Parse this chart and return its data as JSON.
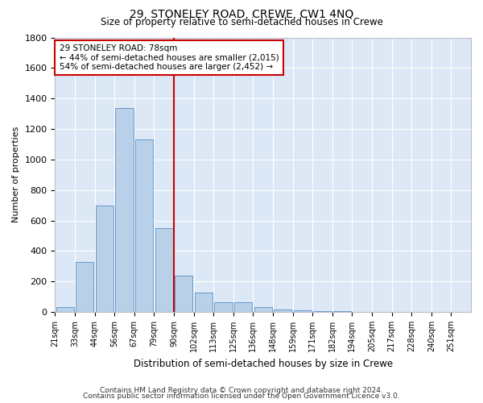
{
  "title": "29, STONELEY ROAD, CREWE, CW1 4NQ",
  "subtitle": "Size of property relative to semi-detached houses in Crewe",
  "xlabel": "Distribution of semi-detached houses by size in Crewe",
  "ylabel": "Number of properties",
  "annotation_line1": "29 STONELEY ROAD: 78sqm",
  "annotation_line2": "← 44% of semi-detached houses are smaller (2,015)",
  "annotation_line3": "54% of semi-detached houses are larger (2,452) →",
  "footer1": "Contains HM Land Registry data © Crown copyright and database right 2024.",
  "footer2": "Contains public sector information licensed under the Open Government Licence v3.0.",
  "bar_color": "#b8d0e8",
  "bar_edge_color": "#6699cc",
  "red_line_color": "#cc0000",
  "bg_color": "#dce8f5",
  "tick_labels": [
    "21sqm",
    "33sqm",
    "44sqm",
    "56sqm",
    "67sqm",
    "79sqm",
    "90sqm",
    "102sqm",
    "113sqm",
    "125sqm",
    "136sqm",
    "148sqm",
    "159sqm",
    "171sqm",
    "182sqm",
    "194sqm",
    "205sqm",
    "217sqm",
    "228sqm",
    "240sqm",
    "251sqm"
  ],
  "bar_heights": [
    30,
    330,
    700,
    1340,
    1130,
    550,
    240,
    125,
    65,
    65,
    30,
    15,
    10,
    8,
    5,
    3,
    2,
    2,
    1,
    1,
    1
  ],
  "n_bins": 21,
  "red_line_bin_index": 5,
  "ylim": [
    0,
    1800
  ],
  "yticks": [
    0,
    200,
    400,
    600,
    800,
    1000,
    1200,
    1400,
    1600,
    1800
  ]
}
